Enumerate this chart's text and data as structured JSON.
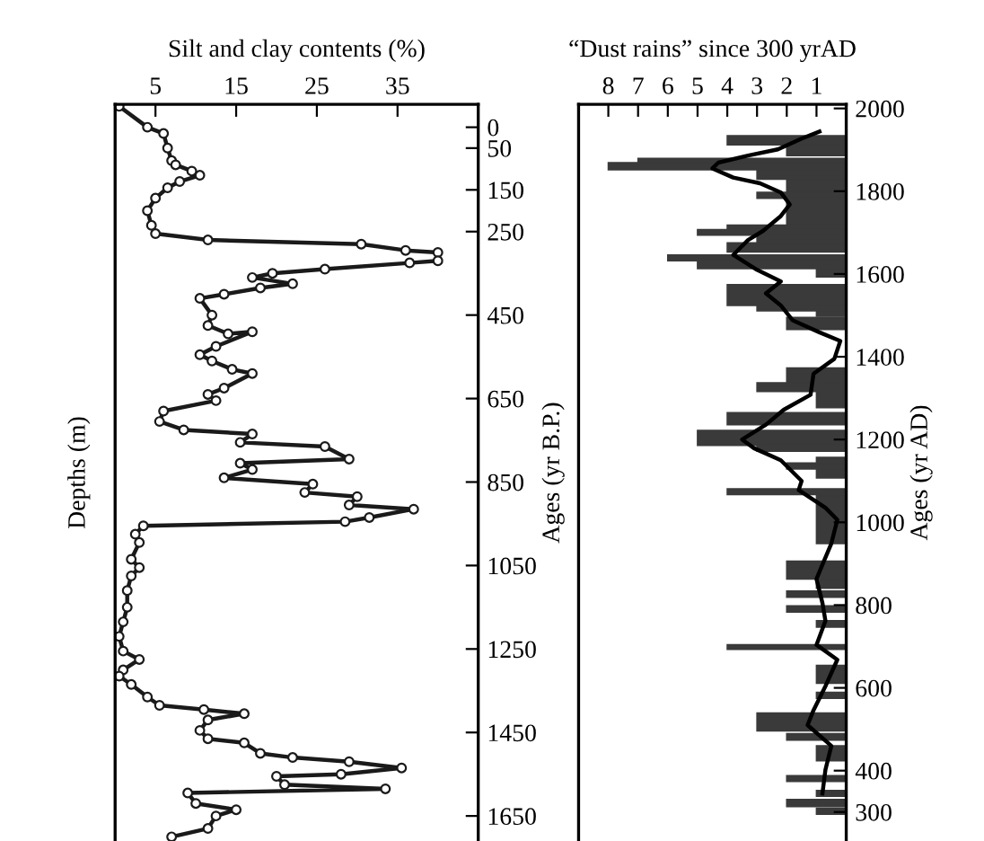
{
  "chart_data": [
    {
      "type": "line",
      "orientation": "horizontal",
      "xlabel": "Silt and clay contents (%)",
      "ylabel": "Ages (yr B.P.)",
      "annotations": [
        "Depths (m)"
      ],
      "xlim": [
        0,
        45
      ],
      "xticks": [
        5,
        15,
        25,
        35
      ],
      "ylim": [
        1710,
        -55
      ],
      "yticks": [
        0,
        50,
        150,
        250,
        450,
        650,
        850,
        1050,
        1250,
        1450,
        1650
      ],
      "marker": "circle",
      "line_style": "solid",
      "series": [
        {
          "color": "#1a1a1a",
          "x": [
            -50,
            0,
            15,
            50,
            80,
            90,
            105,
            115,
            130,
            145,
            170,
            200,
            235,
            255,
            270,
            280,
            295,
            300,
            320,
            325,
            340,
            350,
            360,
            375,
            385,
            400,
            410,
            450,
            475,
            495,
            490,
            525,
            545,
            560,
            580,
            590,
            625,
            640,
            655,
            680,
            705,
            725,
            735,
            755,
            765,
            795,
            805,
            820,
            840,
            855,
            875,
            885,
            905,
            915,
            935,
            945,
            955,
            975,
            995,
            1035,
            1055,
            1075,
            1110,
            1150,
            1185,
            1220,
            1255,
            1275,
            1300,
            1315,
            1335,
            1365,
            1385,
            1395,
            1405,
            1420,
            1445,
            1465,
            1475,
            1500,
            1510,
            1520,
            1535,
            1550,
            1555,
            1575,
            1585,
            1595,
            1620,
            1635,
            1650,
            1680,
            1700
          ],
          "values": [
            0.5,
            4,
            6,
            6.5,
            7,
            7.5,
            9.5,
            10.5,
            8,
            6.5,
            5,
            4,
            4.5,
            5,
            11.5,
            30.5,
            36,
            40,
            40,
            36.5,
            26,
            19.5,
            17,
            22,
            18,
            13.5,
            10.5,
            12,
            11.5,
            14,
            17,
            12.5,
            10.5,
            12,
            14.5,
            17,
            13.5,
            11.5,
            12.5,
            6,
            5.5,
            8.5,
            17,
            15.5,
            26,
            29,
            15.5,
            17,
            13.5,
            24.5,
            23.5,
            30,
            29,
            37,
            31.5,
            28.5,
            3.5,
            2.5,
            3,
            2,
            3,
            2,
            1.5,
            1.5,
            1,
            0.5,
            1,
            3,
            1,
            0.5,
            2,
            4,
            5.5,
            11,
            16,
            11.5,
            10.5,
            11.5,
            16,
            18,
            22,
            29,
            35.5,
            28,
            20,
            21,
            33.5,
            9,
            10,
            15,
            12.5,
            11.5,
            7
          ]
        }
      ]
    },
    {
      "type": "histogram",
      "orientation": "horizontal",
      "xlabel": "“Dust rains” since 300 yrAD",
      "ylabel": "Ages (yr AD)",
      "xlim": [
        9,
        0
      ],
      "xticks": [
        8,
        7,
        6,
        5,
        4,
        3,
        2,
        1
      ],
      "ylim": [
        230,
        2010
      ],
      "yticks": [
        300,
        400,
        600,
        800,
        1000,
        1200,
        1400,
        1600,
        1800,
        2000
      ],
      "series": [
        {
          "type": "histogram",
          "color": "#3a3a3a",
          "bins": [
            295,
            309,
            313,
            330,
            338,
            352,
            374,
            388,
            424,
            460,
            474,
            489,
            496,
            539,
            575,
            589,
            611,
            654,
            693,
            704,
            747,
            762,
            783,
            798,
            819,
            834,
            841,
            863,
            906,
            949,
            1064,
            1067,
            1081,
            1107,
            1129,
            1143,
            1157,
            1172,
            1186,
            1222,
            1236,
            1265,
            1277,
            1316,
            1337,
            1373,
            1466,
            1495,
            1498,
            1511,
            1524,
            1574,
            1593,
            1613,
            1632,
            1646,
            1653,
            1675,
            1694,
            1707,
            1718,
            1783,
            1797,
            1829,
            1852,
            1869,
            1879,
            1886,
            1912,
            1934
          ],
          "values": [
            1,
            0,
            2,
            0,
            1,
            0,
            2,
            0,
            1,
            0,
            2,
            0,
            3,
            0,
            1,
            0,
            1,
            0,
            4,
            0,
            1,
            0,
            2,
            0,
            2,
            0,
            1,
            2,
            0,
            1,
            0,
            4,
            0,
            1,
            2,
            1,
            0,
            3,
            5,
            0,
            4,
            0,
            1,
            3,
            2,
            0,
            2,
            0,
            1,
            3,
            4,
            0,
            1,
            5,
            6,
            0,
            4,
            3,
            5,
            4,
            2,
            3,
            2,
            3,
            8,
            7,
            0,
            2,
            4
          ]
        },
        {
          "type": "line",
          "color": "#000000",
          "x": [
            1944,
            1927,
            1901,
            1886,
            1869,
            1855,
            1833,
            1819,
            1797,
            1768,
            1740,
            1704,
            1682,
            1646,
            1610,
            1582,
            1553,
            1524,
            1488,
            1459,
            1438,
            1395,
            1359,
            1308,
            1272,
            1236,
            1200,
            1179,
            1150,
            1100,
            1078,
            1035,
            1006,
            949,
            898,
            863,
            805,
            762,
            704,
            668,
            604,
            546,
            510,
            460,
            402,
            345
          ],
          "values": [
            0.9,
            1.5,
            2.3,
            3.3,
            4.3,
            4.5,
            3.8,
            2.9,
            2.2,
            1.9,
            2.2,
            2.8,
            3.3,
            3.8,
            3.0,
            2.2,
            2.7,
            2.2,
            1.8,
            0.9,
            0.2,
            0.4,
            1.1,
            1.2,
            2.1,
            2.7,
            3.5,
            3.1,
            2.2,
            1.5,
            1.6,
            0.7,
            0.3,
            0.5,
            0.8,
            1.0,
            0.8,
            0.7,
            1.0,
            0.3,
            0.7,
            1.1,
            1.3,
            0.5,
            0.7,
            0.8
          ]
        }
      ]
    }
  ]
}
